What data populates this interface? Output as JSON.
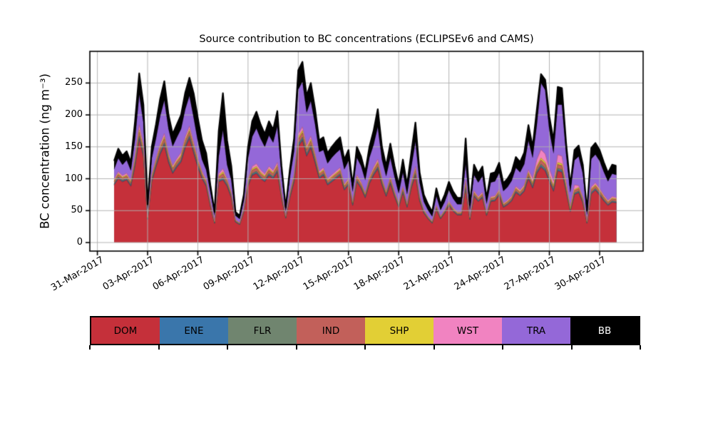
{
  "figure": {
    "background": "#ffffff",
    "grid_color": "#b0b0b0",
    "spine_color": "#000000",
    "text_color": "#000000"
  },
  "chart_data": {
    "type": "area",
    "stacked": true,
    "title": "Source contribution to BC concentrations (ECLIPSEv6 and CAMS)",
    "xlabel": "",
    "ylabel": "BC concentration (ng m⁻³)",
    "grid": true,
    "legend_position": "bottom",
    "ylim": [
      -13.4,
      299.6
    ],
    "xlim_days_since_31mar2017": [
      -0.45,
      32.6
    ],
    "y_ticks": [
      0,
      50,
      100,
      150,
      200,
      250
    ],
    "y_tick_labels": [
      "0",
      "50",
      "100",
      "150",
      "200",
      "250"
    ],
    "x_ticks": {
      "days_since_31mar2017": [
        0,
        3,
        6,
        9,
        12,
        15,
        18,
        21,
        24,
        27,
        30
      ],
      "labels": [
        "31-Mar-2017",
        "03-Apr-2017",
        "06-Apr-2017",
        "09-Apr-2017",
        "12-Apr-2017",
        "15-Apr-2017",
        "18-Apr-2017",
        "21-Apr-2017",
        "24-Apr-2017",
        "27-Apr-2017",
        "30-Apr-2017"
      ]
    },
    "x": {
      "unit": "days since 31-Mar-2017",
      "start": 1.0,
      "step": 0.25,
      "count": 121
    },
    "series": [
      {
        "name": "DOM",
        "color": "#c5303a",
        "values": [
          90,
          100,
          95,
          98,
          88,
          120,
          162,
          135,
          36,
          95,
          118,
          138,
          152,
          125,
          108,
          118,
          126,
          148,
          163,
          140,
          118,
          100,
          88,
          57,
          30,
          95,
          98,
          88,
          70,
          32,
          28,
          48,
          88,
          105,
          108,
          100,
          95,
          105,
          100,
          110,
          70,
          38,
          70,
          95,
          150,
          160,
          135,
          148,
          125,
          100,
          105,
          90,
          95,
          100,
          105,
          82,
          90,
          58,
          95,
          85,
          70,
          92,
          105,
          115,
          90,
          72,
          92,
          72,
          55,
          78,
          55,
          85,
          105,
          65,
          46,
          37,
          30,
          52,
          37,
          46,
          58,
          49,
          43,
          43,
          85,
          36,
          72,
          64,
          70,
          42,
          64,
          65,
          74,
          55,
          59,
          65,
          78,
          73,
          80,
          100,
          85,
          108,
          118,
          112,
          95,
          80,
          112,
          110,
          80,
          48,
          75,
          78,
          62,
          30,
          76,
          82,
          74,
          65,
          58,
          63,
          62
        ]
      },
      {
        "name": "ENE",
        "color": "#3a76ab",
        "values": [
          1.0,
          1.2,
          1.1,
          1.1,
          1.0,
          1.5,
          2.1,
          1.7,
          0.5,
          1.2,
          1.5,
          1.8,
          2.0,
          1.6,
          1.4,
          1.5,
          1.6,
          1.9,
          2.1,
          1.9,
          1.6,
          1.3,
          1.1,
          0.7,
          0.4,
          1.4,
          1.9,
          1.3,
          1.0,
          0.4,
          0.3,
          0.6,
          1.2,
          1.5,
          1.6,
          1.5,
          1.4,
          1.5,
          1.4,
          1.6,
          1.0,
          0.4,
          0.9,
          1.3,
          2.2,
          2.3,
          1.8,
          2.0,
          1.7,
          1.3,
          1.3,
          1.1,
          1.2,
          1.3,
          1.3,
          1.0,
          1.2,
          0.7,
          1.2,
          1.1,
          0.9,
          1.2,
          1.4,
          1.7,
          1.2,
          1.0,
          1.2,
          1.0,
          0.7,
          1.0,
          0.7,
          1.1,
          1.5,
          0.9,
          0.6,
          0.5,
          0.4,
          0.7,
          0.5,
          0.6,
          0.8,
          0.6,
          0.6,
          0.6,
          1.3,
          0.5,
          1.0,
          0.9,
          1.0,
          0.6,
          0.9,
          0.9,
          1.0,
          0.7,
          0.8,
          0.9,
          1.1,
          1.0,
          1.1,
          1.5,
          1.2,
          1.7,
          2.1,
          2.0,
          1.6,
          1.3,
          2.0,
          1.9,
          1.2,
          0.7,
          1.2,
          1.2,
          1.0,
          0.4,
          1.2,
          1.2,
          1.2,
          1.0,
          0.9,
          1.0,
          1.0
        ]
      },
      {
        "name": "FLR",
        "color": "#70856f",
        "values": [
          1.3,
          1.5,
          1.4,
          1.4,
          1.3,
          1.9,
          2.7,
          2.2,
          0.6,
          1.5,
          1.9,
          2.3,
          2.5,
          2.0,
          1.7,
          1.9,
          2.0,
          2.4,
          2.6,
          2.3,
          2.0,
          1.6,
          1.4,
          0.9,
          0.5,
          1.8,
          2.3,
          1.6,
          1.2,
          0.5,
          0.4,
          0.8,
          1.5,
          1.9,
          2.1,
          1.9,
          1.7,
          1.9,
          1.8,
          2.1,
          1.2,
          0.6,
          1.2,
          1.6,
          2.7,
          2.8,
          2.3,
          2.5,
          2.1,
          1.6,
          1.7,
          1.4,
          1.5,
          1.6,
          1.7,
          1.3,
          1.5,
          0.9,
          1.5,
          1.4,
          1.1,
          1.5,
          1.8,
          2.1,
          1.5,
          1.2,
          1.6,
          1.2,
          0.9,
          1.3,
          0.9,
          1.4,
          1.9,
          1.1,
          0.8,
          0.6,
          0.5,
          0.9,
          0.6,
          0.8,
          1.0,
          0.8,
          0.7,
          0.7,
          1.6,
          0.6,
          1.2,
          1.1,
          1.2,
          0.7,
          1.1,
          1.1,
          1.3,
          0.9,
          1.0,
          1.1,
          1.3,
          1.3,
          1.4,
          1.8,
          1.5,
          2.1,
          2.6,
          2.6,
          2.0,
          1.6,
          2.4,
          2.4,
          1.6,
          0.9,
          1.5,
          1.5,
          1.2,
          0.5,
          1.5,
          1.6,
          1.5,
          1.3,
          1.1,
          1.2,
          1.2
        ]
      },
      {
        "name": "IND",
        "color": "#c2605a",
        "values": [
          3.2,
          3.7,
          3.4,
          3.6,
          3.2,
          4.8,
          6.6,
          5.4,
          1.5,
          3.8,
          4.6,
          5.6,
          6.3,
          5.0,
          4.3,
          4.6,
          5.0,
          5.9,
          6.5,
          5.9,
          4.9,
          4.0,
          3.5,
          2.3,
          1.2,
          4.4,
          5.9,
          4.0,
          3.0,
          1.2,
          1.1,
          1.9,
          3.8,
          4.8,
          5.1,
          4.6,
          4.3,
          4.8,
          4.4,
          5.2,
          3.0,
          1.4,
          2.9,
          4.1,
          6.8,
          7.1,
          5.8,
          6.3,
          5.3,
          4.0,
          4.1,
          3.5,
          3.8,
          4.0,
          4.1,
          3.3,
          3.6,
          2.3,
          3.8,
          3.4,
          2.8,
          3.8,
          4.4,
          5.2,
          3.8,
          3.0,
          3.9,
          3.0,
          2.3,
          3.3,
          2.3,
          3.5,
          4.7,
          2.8,
          1.9,
          1.5,
          1.2,
          2.1,
          1.5,
          1.9,
          2.4,
          2.0,
          1.8,
          1.8,
          4.1,
          1.5,
          3.1,
          2.7,
          3.0,
          1.8,
          2.7,
          2.8,
          3.1,
          2.3,
          2.5,
          2.8,
          3.4,
          3.2,
          3.5,
          4.6,
          3.8,
          5.2,
          6.6,
          6.4,
          4.9,
          4.0,
          6.1,
          6.1,
          3.9,
          2.2,
          3.6,
          3.8,
          3.1,
          1.3,
          3.7,
          3.9,
          3.6,
          3.2,
          2.8,
          3.1,
          3.0
        ]
      },
      {
        "name": "SHP",
        "color": "#e2cf35",
        "values": [
          1.5,
          1.8,
          1.6,
          1.7,
          1.5,
          2.3,
          3.2,
          2.6,
          0.7,
          1.8,
          2.2,
          2.7,
          3.0,
          2.4,
          2.0,
          2.2,
          2.4,
          2.8,
          3.1,
          2.8,
          2.3,
          1.9,
          1.7,
          1.1,
          0.6,
          2.1,
          2.8,
          1.9,
          1.4,
          0.6,
          0.5,
          0.9,
          1.8,
          2.3,
          2.5,
          2.2,
          2.0,
          2.3,
          2.1,
          2.5,
          1.4,
          0.7,
          1.4,
          2.0,
          3.2,
          3.4,
          2.8,
          3.0,
          2.5,
          1.9,
          2.0,
          1.7,
          1.8,
          1.9,
          2.0,
          1.6,
          1.7,
          1.1,
          1.8,
          1.6,
          1.3,
          1.8,
          2.1,
          2.5,
          1.8,
          1.4,
          1.9,
          1.4,
          1.1,
          1.6,
          1.1,
          1.7,
          2.3,
          1.3,
          0.9,
          0.7,
          0.6,
          1.0,
          0.7,
          0.9,
          1.1,
          1.0,
          0.8,
          0.8,
          2.0,
          0.7,
          1.5,
          1.3,
          1.4,
          0.8,
          1.3,
          1.3,
          1.5,
          1.1,
          1.2,
          1.3,
          1.6,
          1.5,
          1.7,
          2.2,
          1.8,
          2.5,
          3.2,
          3.1,
          2.4,
          1.9,
          2.9,
          2.9,
          1.9,
          1.1,
          1.7,
          1.8,
          1.5,
          0.6,
          1.8,
          1.9,
          1.7,
          1.5,
          1.3,
          1.5,
          1.4
        ]
      },
      {
        "name": "WST",
        "color": "#f183c1",
        "values": [
          2.6,
          2.9,
          2.7,
          2.9,
          2.5,
          5.7,
          8.0,
          6.5,
          1.2,
          3.0,
          3.7,
          4.5,
          5.1,
          4.0,
          3.4,
          3.7,
          4.0,
          4.7,
          5.2,
          4.7,
          3.9,
          3.2,
          2.8,
          1.8,
          1.0,
          3.5,
          4.7,
          3.2,
          2.4,
          1.0,
          0.8,
          1.5,
          3.0,
          3.8,
          4.1,
          3.7,
          3.4,
          3.8,
          3.5,
          4.1,
          2.4,
          1.1,
          2.3,
          3.3,
          5.4,
          5.7,
          4.6,
          5.0,
          4.2,
          3.2,
          3.3,
          2.8,
          3.0,
          3.2,
          3.3,
          2.6,
          2.9,
          1.8,
          3.0,
          2.7,
          2.2,
          3.0,
          3.5,
          4.2,
          3.0,
          2.4,
          3.1,
          2.4,
          1.8,
          2.6,
          1.8,
          2.8,
          3.8,
          2.2,
          1.5,
          1.2,
          1.0,
          1.7,
          1.2,
          1.5,
          1.9,
          1.6,
          1.4,
          1.4,
          3.3,
          1.2,
          2.4,
          2.2,
          2.4,
          1.4,
          2.2,
          2.2,
          2.5,
          1.9,
          2.0,
          2.2,
          2.7,
          2.5,
          2.8,
          3.7,
          7.5,
          10.4,
          13.2,
          12.8,
          9.9,
          8.0,
          12.2,
          12.1,
          7.8,
          4.5,
          7.3,
          3.0,
          2.4,
          1.0,
          3.0,
          3.1,
          2.9,
          2.5,
          2.2,
          2.4,
          2.4
        ]
      },
      {
        "name": "TRA",
        "color": "#9468d8",
        "values": [
          15.4,
          21.0,
          16.8,
          20.3,
          15.5,
          25.8,
          47.5,
          34.6,
          11.5,
          25.7,
          31.1,
          43.1,
          52.0,
          38.0,
          30.2,
          33.1,
          37.0,
          43.4,
          47.6,
          38.4,
          26.4,
          18.0,
          15.5,
          15.2,
          9.3,
          26.9,
          60.4,
          22.0,
          19.0,
          6.4,
          5.8,
          12.4,
          32.7,
          46.7,
          55.6,
          49.1,
          42.2,
          48.7,
          43.7,
          56.5,
          27.0,
          6.9,
          23.4,
          35.8,
          69.7,
          70.8,
          51.7,
          55.2,
          45.2,
          30.0,
          27.6,
          23.5,
          26.7,
          28.1,
          28.6,
          23.2,
          27.1,
          15.2,
          26.7,
          24.9,
          19.7,
          29.7,
          34.9,
          50.3,
          28.7,
          23.0,
          29.4,
          22.0,
          15.2,
          22.2,
          14.2,
          22.5,
          38.9,
          20.7,
          12.4,
          9.5,
          7.4,
          14.6,
          9.5,
          12.4,
          16.9,
          14.0,
          11.7,
          11.7,
          25.8,
          10.6,
          24.8,
          21.9,
          25.1,
          13.7,
          21.9,
          22.7,
          25.6,
          19.0,
          20.5,
          23.7,
          28.9,
          27.5,
          32.4,
          46.2,
          32.2,
          54.2,
          104.3,
          100.2,
          59.3,
          43.2,
          78.4,
          80.6,
          41.6,
          21.7,
          38.8,
          45.6,
          36.8,
          10.2,
          43.9,
          44.3,
          43.1,
          36.5,
          29.7,
          35.8,
          35.0
        ]
      },
      {
        "name": "BB",
        "color": "#000000",
        "values": [
          13,
          15,
          14,
          14,
          13,
          28,
          33,
          28,
          8,
          18,
          22,
          27,
          30,
          22,
          19,
          20,
          22,
          26,
          28,
          38,
          36,
          30,
          26,
          11,
          5,
          40,
          58,
          38,
          22,
          6,
          5,
          9,
          18,
          24,
          26,
          22,
          20,
          22,
          20,
          24,
          14,
          6,
          13,
          20,
          30,
          31,
          26,
          28,
          24,
          18,
          20,
          16,
          17,
          18,
          19,
          15,
          17,
          10,
          17,
          15,
          12,
          17,
          22,
          28,
          20,
          16,
          22,
          17,
          13,
          20,
          14,
          22,
          30,
          16,
          11,
          9,
          7,
          12,
          9,
          11,
          13,
          11,
          10,
          10,
          40,
          8,
          16,
          14,
          15,
          9,
          14,
          14,
          16,
          12,
          13,
          14,
          17,
          16,
          18,
          24,
          17,
          24,
          14,
          16,
          22,
          20,
          28,
          26,
          18,
          10,
          16,
          17,
          14,
          6,
          17,
          18,
          17,
          15,
          13,
          14,
          14
        ]
      }
    ],
    "legend": [
      "DOM",
      "ENE",
      "FLR",
      "IND",
      "SHP",
      "WST",
      "TRA",
      "BB"
    ]
  }
}
